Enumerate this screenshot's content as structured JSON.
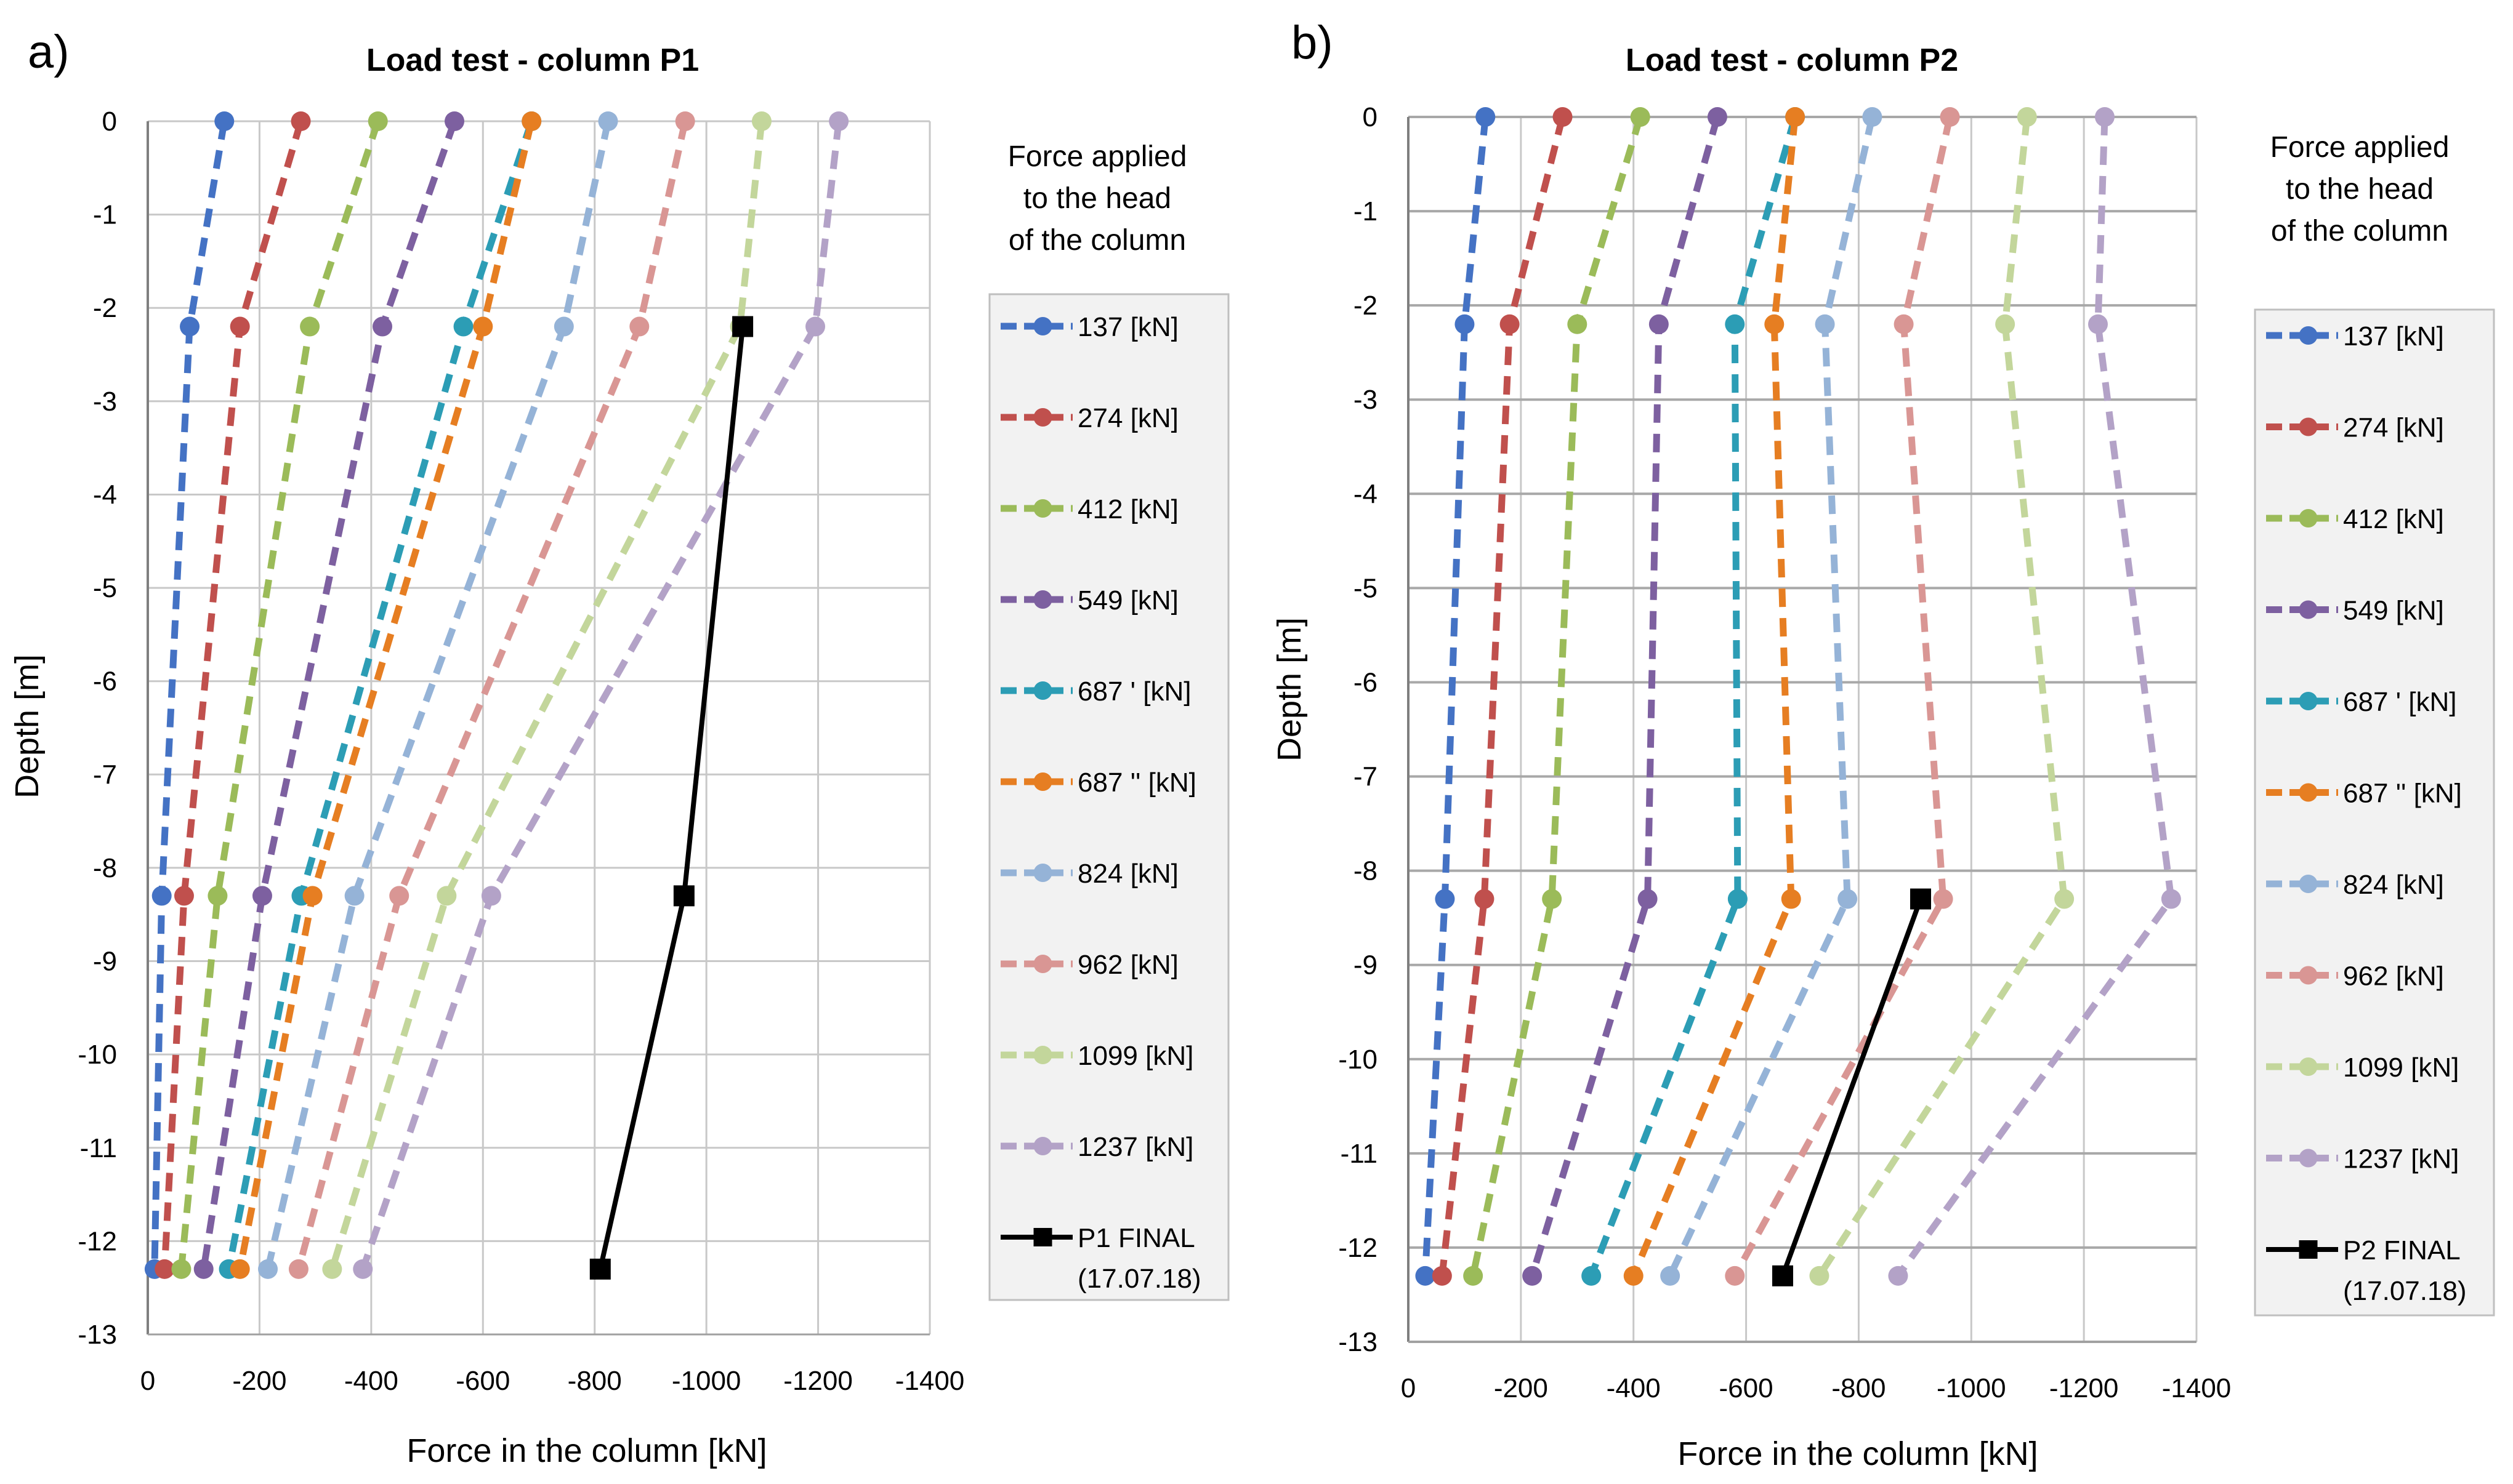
{
  "chart_data": [
    {
      "type": "line",
      "panel": "a)",
      "title": "Load test - column P1",
      "xlabel": "Force in the column [kN]",
      "ylabel": "Depth [m]",
      "xlim": [
        0,
        -1400
      ],
      "ylim": [
        -13,
        0
      ],
      "xticks": [
        0,
        -200,
        -400,
        -600,
        -800,
        -1000,
        -1200,
        -1400
      ],
      "yticks": [
        0,
        -1,
        -2,
        -3,
        -4,
        -5,
        -6,
        -7,
        -8,
        -9,
        -10,
        -11,
        -12,
        -13
      ],
      "grid": true,
      "legend_title": [
        "Force applied",
        "to the head",
        "of the column"
      ],
      "legend_position": "right",
      "depths": [
        0,
        -2.2,
        -8.3,
        -12.3
      ],
      "series": [
        {
          "name": "137 [kN]",
          "color": "#4472C4",
          "dashed": true,
          "marker": "circle",
          "x": [
            -137,
            -75,
            -25,
            -12
          ]
        },
        {
          "name": "274 [kN]",
          "color": "#C0504D",
          "dashed": true,
          "marker": "circle",
          "x": [
            -274,
            -165,
            -65,
            -30
          ]
        },
        {
          "name": "412 [kN]",
          "color": "#9BBB59",
          "dashed": true,
          "marker": "circle",
          "x": [
            -412,
            -290,
            -125,
            -60
          ]
        },
        {
          "name": "549 [kN]",
          "color": "#7D60A0",
          "dashed": true,
          "marker": "circle",
          "x": [
            -549,
            -420,
            -205,
            -100
          ]
        },
        {
          "name": "687 ' [kN]",
          "color": "#2C9DB5",
          "dashed": true,
          "marker": "circle",
          "x": [
            -687,
            -565,
            -275,
            -145
          ]
        },
        {
          "name": "687 '' [kN]",
          "color": "#E67E22",
          "dashed": true,
          "marker": "circle",
          "x": [
            -687,
            -600,
            -295,
            -165
          ]
        },
        {
          "name": "824 [kN]",
          "color": "#95B3D7",
          "dashed": true,
          "marker": "circle",
          "x": [
            -824,
            -745,
            -370,
            -215
          ]
        },
        {
          "name": "962 [kN]",
          "color": "#D99694",
          "dashed": true,
          "marker": "circle",
          "x": [
            -962,
            -880,
            -450,
            -270
          ]
        },
        {
          "name": "1099 [kN]",
          "color": "#C3D69B",
          "dashed": true,
          "marker": "circle",
          "x": [
            -1099,
            -1060,
            -535,
            -330
          ]
        },
        {
          "name": "1237 [kN]",
          "color": "#B3A2C7",
          "dashed": true,
          "marker": "circle",
          "x": [
            -1237,
            -1195,
            -615,
            -385
          ]
        },
        {
          "name": "P1 FINAL",
          "name2": "(17.07.18)",
          "color": "#000000",
          "dashed": false,
          "marker": "square",
          "x": [
            -1065,
            -960,
            -810
          ],
          "y": [
            -2.2,
            -8.3,
            -12.3
          ]
        }
      ]
    },
    {
      "type": "line",
      "panel": "b)",
      "title": "Load test - column P2",
      "xlabel": "Force in the column [kN]",
      "ylabel": "Depth [m]",
      "xlim": [
        0,
        -1400
      ],
      "ylim": [
        -13,
        0
      ],
      "xticks": [
        0,
        -200,
        -400,
        -600,
        -800,
        -1000,
        -1200,
        -1400
      ],
      "yticks": [
        0,
        -1,
        -2,
        -3,
        -4,
        -5,
        -6,
        -7,
        -8,
        -9,
        -10,
        -11,
        -12,
        -13
      ],
      "grid": true,
      "legend_title": [
        "Force applied",
        "to the head",
        "of the column"
      ],
      "legend_position": "right",
      "depths": [
        0,
        -2.2,
        -8.3,
        -12.3
      ],
      "series": [
        {
          "name": "137 [kN]",
          "color": "#4472C4",
          "dashed": true,
          "marker": "circle",
          "x": [
            -137,
            -100,
            -65,
            -30
          ]
        },
        {
          "name": "274 [kN]",
          "color": "#C0504D",
          "dashed": true,
          "marker": "circle",
          "x": [
            -274,
            -180,
            -135,
            -60
          ]
        },
        {
          "name": "412 [kN]",
          "color": "#9BBB59",
          "dashed": true,
          "marker": "circle",
          "x": [
            -412,
            -300,
            -255,
            -115
          ]
        },
        {
          "name": "549 [kN]",
          "color": "#7D60A0",
          "dashed": true,
          "marker": "circle",
          "x": [
            -549,
            -445,
            -425,
            -220
          ]
        },
        {
          "name": "687 ' [kN]",
          "color": "#2C9DB5",
          "dashed": true,
          "marker": "circle",
          "x": [
            -687,
            -580,
            -585,
            -325
          ]
        },
        {
          "name": "687 '' [kN]",
          "color": "#E67E22",
          "dashed": true,
          "marker": "circle",
          "x": [
            -687,
            -650,
            -680,
            -400
          ]
        },
        {
          "name": "824 [kN]",
          "color": "#95B3D7",
          "dashed": true,
          "marker": "circle",
          "x": [
            -824,
            -740,
            -780,
            -465
          ]
        },
        {
          "name": "962 [kN]",
          "color": "#D99694",
          "dashed": true,
          "marker": "circle",
          "x": [
            -962,
            -880,
            -950,
            -580
          ]
        },
        {
          "name": "1099 [kN]",
          "color": "#C3D69B",
          "dashed": true,
          "marker": "circle",
          "x": [
            -1099,
            -1060,
            -1165,
            -730
          ]
        },
        {
          "name": "1237 [kN]",
          "color": "#B3A2C7",
          "dashed": true,
          "marker": "circle",
          "x": [
            -1237,
            -1225,
            -1355,
            -870
          ]
        },
        {
          "name": "P2 FINAL",
          "name2": "(17.07.18)",
          "color": "#000000",
          "dashed": false,
          "marker": "square",
          "x": [
            -910,
            -665
          ],
          "y": [
            -8.3,
            -12.3
          ]
        }
      ]
    }
  ]
}
